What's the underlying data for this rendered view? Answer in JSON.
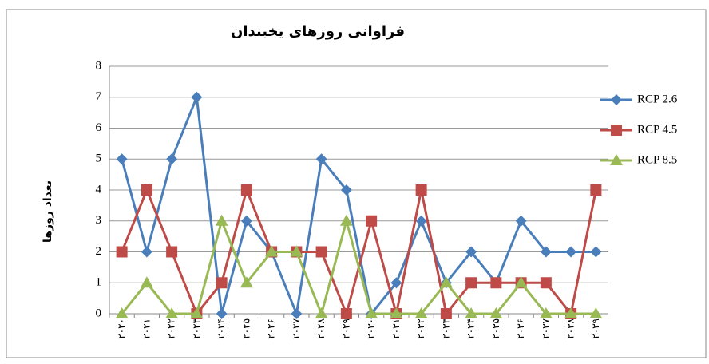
{
  "chart_data": {
    "type": "line",
    "title": "فراوانی روزهای یخبندان",
    "y_label": "تعداد روزها",
    "categories": [
      "۲۰۲۰",
      "۲۰۲۱",
      "۲۰۲۲",
      "۲۰۲۳",
      "۲۰۲۴",
      "۲۰۲۵",
      "۲۰۲۶",
      "۲۰۲۷",
      "۲۰۲۸",
      "۲۰۲۹",
      "۲۰۳۰",
      "۲۰۳۱",
      "۲۰۳۲",
      "۲۰۳۳",
      "۲۰۳۴",
      "۲۰۳۵",
      "۲۰۳۶",
      "۲۰۳۷",
      "۲۰۳۸",
      "۲۰۳۹"
    ],
    "series": [
      {
        "name": "RCP 2.6",
        "color": "#4a7ebb",
        "marker": "diamond",
        "values": [
          5,
          2,
          5,
          7,
          0,
          3,
          2,
          0,
          5,
          4,
          0,
          1,
          3,
          1,
          2,
          1,
          3,
          2,
          2,
          2
        ]
      },
      {
        "name": "RCP 4.5",
        "color": "#be4b48",
        "marker": "square",
        "values": [
          2,
          4,
          2,
          0,
          1,
          4,
          2,
          2,
          2,
          0,
          3,
          0,
          4,
          0,
          1,
          1,
          1,
          1,
          0,
          4
        ]
      },
      {
        "name": "RCP 8.5",
        "color": "#98b954",
        "marker": "triangle",
        "values": [
          0,
          1,
          0,
          0,
          3,
          1,
          2,
          2,
          0,
          3,
          0,
          0,
          0,
          1,
          0,
          0,
          1,
          0,
          0,
          0
        ]
      }
    ],
    "ylim": [
      0,
      8
    ],
    "yticks": [
      0,
      1,
      2,
      3,
      4,
      5,
      6,
      7,
      8
    ],
    "grid": true,
    "legend": "right"
  }
}
